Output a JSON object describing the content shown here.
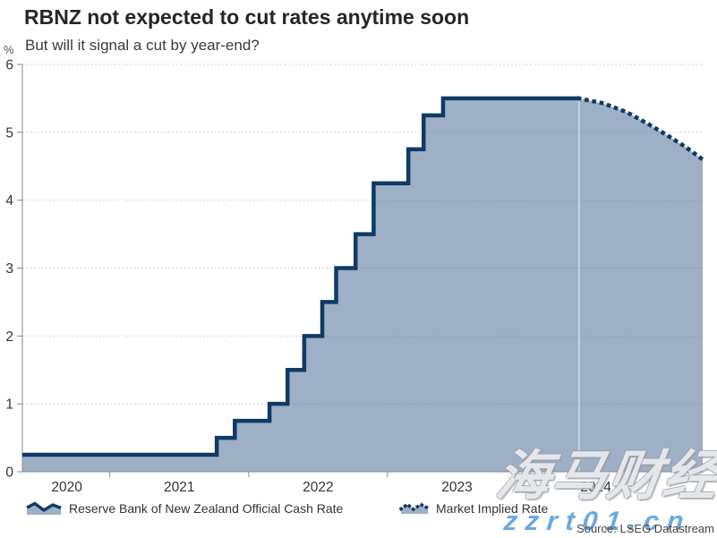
{
  "header": {
    "title": "RBNZ not expected to cut rates anytime soon",
    "subtitle": "But will it signal a cut by year-end?"
  },
  "axis_unit": "%",
  "legend": [
    {
      "label": "Reserve Bank of New Zealand Official Cash Rate",
      "style": "solid-area"
    },
    {
      "label": "Market Implied Rate",
      "style": "dotted-line"
    }
  ],
  "source": "Source: LSEG Datastream",
  "watermark": {
    "cjk": "海马财经",
    "latin": "zzrt01.cn"
  },
  "colors": {
    "line_navy": "#0e3a66",
    "area_fill": "#9db0c5",
    "axis_gray": "#8a8a8a",
    "watermark_blue": "#5aa0dd"
  },
  "chart_data": {
    "type": "area",
    "title": "RBNZ not expected to cut rates anytime soon",
    "subtitle": "But will it signal a cut by year-end?",
    "ylabel": "%",
    "ylim": [
      0,
      6
    ],
    "y_ticks": [
      0,
      1,
      2,
      3,
      4,
      5,
      6
    ],
    "x_domain": [
      2020.37,
      2025.27
    ],
    "grid": "dotted-horizontal",
    "legend_position": "bottom",
    "colors": {
      "line": "#0e3a66",
      "fill": "#9db0c5"
    },
    "x_axis": {
      "ticks_t": [
        2021,
        2022,
        2023,
        2024
      ],
      "labels": [
        {
          "text": "2020",
          "t": 2020.69
        },
        {
          "text": "2021",
          "t": 2021.5
        },
        {
          "text": "2022",
          "t": 2022.5
        },
        {
          "text": "2023",
          "t": 2023.5
        },
        {
          "text": "2024",
          "t": 2024.5
        }
      ]
    },
    "forecast_start_t": 2024.38,
    "series": [
      {
        "name": "Reserve Bank of New Zealand Official Cash Rate",
        "type": "step",
        "line": "solid",
        "points": [
          [
            2020.37,
            0.25
          ],
          [
            2021.77,
            0.5
          ],
          [
            2021.9,
            0.75
          ],
          [
            2022.15,
            1.0
          ],
          [
            2022.28,
            1.5
          ],
          [
            2022.4,
            2.0
          ],
          [
            2022.53,
            2.5
          ],
          [
            2022.63,
            3.0
          ],
          [
            2022.77,
            3.5
          ],
          [
            2022.9,
            4.25
          ],
          [
            2023.15,
            4.75
          ],
          [
            2023.26,
            5.25
          ],
          [
            2023.4,
            5.5
          ],
          [
            2024.38,
            5.5
          ]
        ]
      },
      {
        "name": "Market Implied Rate",
        "type": "line",
        "line": "dotted",
        "points": [
          [
            2024.38,
            5.5
          ],
          [
            2024.55,
            5.43
          ],
          [
            2024.72,
            5.3
          ],
          [
            2024.88,
            5.12
          ],
          [
            2025.02,
            4.95
          ],
          [
            2025.15,
            4.78
          ],
          [
            2025.27,
            4.6
          ]
        ]
      }
    ]
  }
}
